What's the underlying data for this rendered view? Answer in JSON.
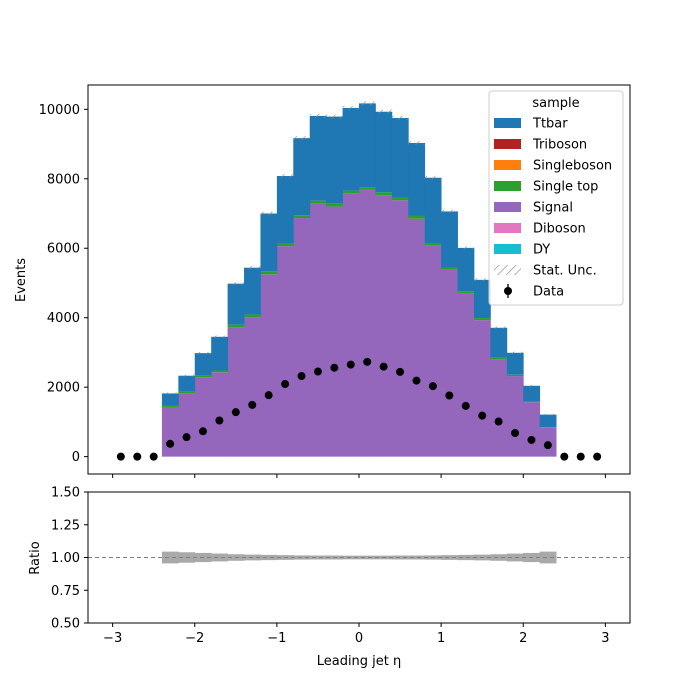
{
  "chart_data": [
    {
      "type": "bar",
      "panel": "main",
      "stacked": true,
      "ylabel": "Events",
      "xlim": [
        -3.3,
        3.3
      ],
      "ylim": [
        -500,
        10700
      ],
      "xticks": [
        "−3",
        "−2",
        "−1",
        "0",
        "1",
        "2",
        "3"
      ],
      "yticks": [
        "0",
        "2000",
        "4000",
        "6000",
        "8000",
        "10000"
      ],
      "bin_edges": [
        -2.4,
        -2.2,
        -2.0,
        -1.8,
        -1.6,
        -1.4,
        -1.2,
        -1.0,
        -0.8,
        -0.6,
        -0.4,
        -0.2,
        0.0,
        0.2,
        0.4,
        0.6,
        0.8,
        1.0,
        1.2,
        1.4,
        1.6,
        1.8,
        2.0,
        2.2,
        2.4
      ],
      "series": [
        {
          "name": "Signal",
          "color": "#9467bd",
          "values": [
            1430,
            1830,
            2290,
            2430,
            3730,
            4010,
            5250,
            6060,
            6870,
            7290,
            7200,
            7580,
            7680,
            7530,
            7380,
            6850,
            6070,
            5390,
            4700,
            3930,
            2800,
            2320,
            1570,
            830
          ]
        },
        {
          "name": "Single top",
          "color": "#2ca02c",
          "values": [
            30,
            40,
            50,
            50,
            70,
            80,
            90,
            90,
            80,
            80,
            80,
            80,
            80,
            80,
            80,
            80,
            80,
            70,
            60,
            60,
            50,
            40,
            30,
            20
          ]
        },
        {
          "name": "Ttbar",
          "color": "#1f77b4",
          "values": [
            360,
            460,
            640,
            970,
            1180,
            1350,
            1660,
            1930,
            2220,
            2440,
            2510,
            2380,
            2410,
            2320,
            2290,
            2100,
            1880,
            1600,
            1250,
            1100,
            860,
            630,
            440,
            360
          ]
        },
        {
          "name": "Triboson",
          "color": "#b22222",
          "values": []
        },
        {
          "name": "Singleboson",
          "color": "#ff7f0e",
          "values": []
        },
        {
          "name": "Diboson",
          "color": "#e377c2",
          "values": []
        },
        {
          "name": "DY",
          "color": "#17becf",
          "values": []
        }
      ],
      "data_points": {
        "name": "Data",
        "x": [
          -2.9,
          -2.7,
          -2.5,
          -2.3,
          -2.1,
          -1.9,
          -1.7,
          -1.5,
          -1.3,
          -1.1,
          -0.9,
          -0.7,
          -0.5,
          -0.3,
          -0.1,
          0.1,
          0.3,
          0.5,
          0.7,
          0.9,
          1.1,
          1.3,
          1.5,
          1.7,
          1.9,
          2.1,
          2.3,
          2.5,
          2.7,
          2.9
        ],
        "y": [
          0,
          0,
          0,
          370,
          560,
          730,
          1040,
          1280,
          1490,
          1770,
          2090,
          2320,
          2450,
          2560,
          2650,
          2730,
          2590,
          2440,
          2190,
          2030,
          1760,
          1460,
          1180,
          1010,
          680,
          480,
          330,
          0,
          0,
          0
        ]
      },
      "legend": {
        "title": "sample",
        "position": "top-right",
        "entries": [
          "Ttbar",
          "Triboson",
          "Singleboson",
          "Single top",
          "Signal",
          "Diboson",
          "DY",
          "Stat. Unc.",
          "Data"
        ]
      }
    },
    {
      "type": "line",
      "panel": "ratio",
      "xlabel": "Leading jet  η",
      "ylabel": "Ratio",
      "ylim": [
        0.5,
        1.5
      ],
      "yticks": [
        "0.50",
        "0.75",
        "1.00",
        "1.25",
        "1.50"
      ],
      "reference_line": 1.0,
      "uncertainty_halfwidth": [
        0.045,
        0.04,
        0.035,
        0.03,
        0.025,
        0.022,
        0.02,
        0.018,
        0.016,
        0.015,
        0.015,
        0.014,
        0.014,
        0.014,
        0.015,
        0.015,
        0.016,
        0.018,
        0.02,
        0.022,
        0.025,
        0.03,
        0.035,
        0.045
      ]
    }
  ]
}
